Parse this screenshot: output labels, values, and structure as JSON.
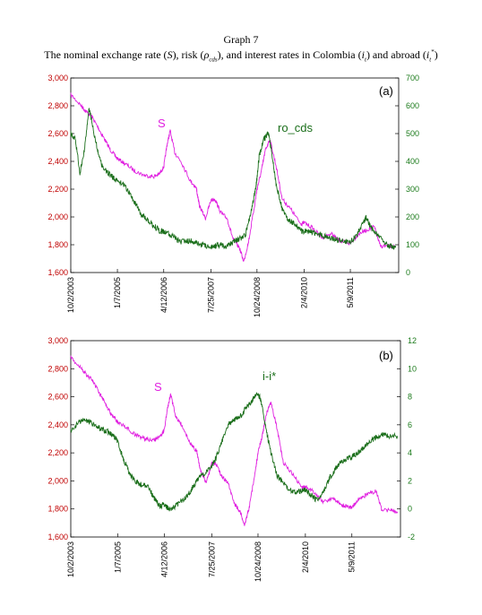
{
  "figure": {
    "title": "Graph 7",
    "subtitle": "The nominal exchange rate (S), risk (ρcds), and interest rates in Colombia (it) and abroad (it*)"
  },
  "colors": {
    "s_series": "#e020e0",
    "right_series": "#1a6e1a",
    "left_axis": "#c00000",
    "right_axis": "#1a7a1a"
  },
  "chart_data": [
    {
      "type": "line",
      "panel_label": "(a)",
      "x_ticks": [
        "10/2/2003",
        "1/7/2005",
        "4/12/2006",
        "7/25/2007",
        "10/24/2008",
        "2/4/2010",
        "5/9/2011"
      ],
      "left_axis": {
        "ylim": [
          1600,
          3000
        ],
        "ticks": [
          "1,600",
          "1,800",
          "2,000",
          "2,200",
          "2,400",
          "2,600",
          "2,800",
          "3,000"
        ]
      },
      "right_axis": {
        "ylim": [
          0,
          700
        ],
        "ticks": [
          "0",
          "100",
          "200",
          "300",
          "400",
          "500",
          "600",
          "700"
        ]
      },
      "series": [
        {
          "name": "S",
          "axis": "left",
          "x": [
            "2003-10-02",
            "2004-01-15",
            "2004-03-01",
            "2004-05-01",
            "2004-07-01",
            "2004-09-01",
            "2004-11-01",
            "2005-01-07",
            "2005-04-01",
            "2005-07-01",
            "2005-10-01",
            "2006-01-01",
            "2006-03-01",
            "2006-04-12",
            "2006-05-15",
            "2006-06-15",
            "2006-08-01",
            "2006-10-01",
            "2007-01-01",
            "2007-03-01",
            "2007-04-01",
            "2007-06-01",
            "2007-07-25",
            "2007-09-01",
            "2007-11-01",
            "2008-01-01",
            "2008-03-01",
            "2008-05-01",
            "2008-06-15",
            "2008-08-01",
            "2008-10-01",
            "2008-10-24",
            "2008-12-01",
            "2009-01-15",
            "2009-03-01",
            "2009-05-01",
            "2009-07-01",
            "2009-10-01",
            "2010-01-01",
            "2010-02-04",
            "2010-05-01",
            "2010-08-01",
            "2010-11-01",
            "2011-01-01",
            "2011-03-01",
            "2011-05-09",
            "2011-08-01",
            "2011-10-01",
            "2012-01-01",
            "2012-03-01",
            "2012-06-01",
            "2012-08-01"
          ],
          "values": [
            2880,
            2800,
            2760,
            2720,
            2640,
            2560,
            2480,
            2420,
            2380,
            2330,
            2300,
            2290,
            2310,
            2360,
            2520,
            2620,
            2460,
            2400,
            2260,
            2210,
            2080,
            1990,
            2120,
            2130,
            2030,
            1990,
            1840,
            1780,
            1680,
            1820,
            2090,
            2200,
            2310,
            2480,
            2560,
            2370,
            2130,
            2050,
            1950,
            1960,
            1920,
            1850,
            1880,
            1840,
            1820,
            1810,
            1880,
            1900,
            1930,
            1790,
            1790,
            1780
          ]
        },
        {
          "name": "ro_cds",
          "axis": "right",
          "x": [
            "2003-10-02",
            "2003-11-15",
            "2004-01-01",
            "2004-02-15",
            "2004-04-01",
            "2004-06-01",
            "2004-08-01",
            "2004-10-01",
            "2004-12-01",
            "2005-01-07",
            "2005-03-01",
            "2005-05-01",
            "2005-07-01",
            "2005-09-01",
            "2005-11-01",
            "2006-01-01",
            "2006-03-01",
            "2006-04-12",
            "2006-06-01",
            "2006-08-01",
            "2006-10-01",
            "2007-01-01",
            "2007-03-01",
            "2007-05-01",
            "2007-07-25",
            "2007-09-01",
            "2007-11-01",
            "2008-01-01",
            "2008-03-01",
            "2008-05-01",
            "2008-07-01",
            "2008-09-01",
            "2008-10-10",
            "2008-10-24",
            "2008-11-15",
            "2009-01-01",
            "2009-02-15",
            "2009-03-15",
            "2009-05-01",
            "2009-07-01",
            "2009-09-01",
            "2009-11-01",
            "2010-01-01",
            "2010-02-04",
            "2010-04-01",
            "2010-06-01",
            "2010-08-01",
            "2010-10-01",
            "2010-12-01",
            "2011-02-01",
            "2011-05-09",
            "2011-07-01",
            "2011-09-01",
            "2011-10-15",
            "2011-12-01",
            "2012-02-01",
            "2012-04-01",
            "2012-06-01",
            "2012-08-01"
          ],
          "values": [
            500,
            480,
            360,
            440,
            590,
            480,
            390,
            360,
            340,
            330,
            320,
            290,
            250,
            210,
            190,
            170,
            150,
            145,
            140,
            125,
            110,
            115,
            105,
            100,
            90,
            95,
            100,
            95,
            110,
            120,
            135,
            230,
            300,
            340,
            420,
            480,
            500,
            440,
            320,
            230,
            190,
            175,
            150,
            148,
            150,
            140,
            135,
            125,
            120,
            115,
            110,
            130,
            170,
            200,
            160,
            140,
            110,
            95,
            90
          ]
        }
      ]
    },
    {
      "type": "line",
      "panel_label": "(b)",
      "x_ticks": [
        "10/2/2003",
        "1/7/2005",
        "4/12/2006",
        "7/25/2007",
        "10/24/2008",
        "2/4/2010",
        "5/9/2011"
      ],
      "left_axis": {
        "ylim": [
          1600,
          3000
        ],
        "ticks": [
          "1,600",
          "1,800",
          "2,000",
          "2,200",
          "2,400",
          "2,600",
          "2,800",
          "3,000"
        ]
      },
      "right_axis": {
        "ylim": [
          -2,
          12
        ],
        "ticks": [
          "-2",
          "0",
          "2",
          "4",
          "6",
          "8",
          "10",
          "12"
        ]
      },
      "series": [
        {
          "name": "S",
          "axis": "left",
          "x": [
            "2003-10-02",
            "2004-01-15",
            "2004-03-01",
            "2004-05-01",
            "2004-07-01",
            "2004-09-01",
            "2004-11-01",
            "2005-01-07",
            "2005-04-01",
            "2005-07-01",
            "2005-10-01",
            "2006-01-01",
            "2006-03-01",
            "2006-04-12",
            "2006-05-15",
            "2006-06-15",
            "2006-08-01",
            "2006-10-01",
            "2007-01-01",
            "2007-03-01",
            "2007-04-01",
            "2007-06-01",
            "2007-07-25",
            "2007-09-01",
            "2007-11-01",
            "2008-01-01",
            "2008-03-01",
            "2008-05-01",
            "2008-06-15",
            "2008-08-01",
            "2008-10-01",
            "2008-10-24",
            "2008-12-01",
            "2009-01-15",
            "2009-03-01",
            "2009-05-01",
            "2009-07-01",
            "2009-10-01",
            "2010-01-01",
            "2010-02-04",
            "2010-05-01",
            "2010-08-01",
            "2010-11-01",
            "2011-01-01",
            "2011-03-01",
            "2011-05-09",
            "2011-08-01",
            "2011-10-01",
            "2012-01-01",
            "2012-03-01",
            "2012-06-01",
            "2012-08-01"
          ],
          "values": [
            2880,
            2800,
            2760,
            2720,
            2640,
            2560,
            2480,
            2420,
            2380,
            2330,
            2300,
            2290,
            2310,
            2360,
            2520,
            2620,
            2460,
            2400,
            2260,
            2210,
            2080,
            1990,
            2120,
            2130,
            2030,
            1990,
            1840,
            1780,
            1680,
            1820,
            2090,
            2200,
            2310,
            2480,
            2560,
            2370,
            2130,
            2050,
            1950,
            1960,
            1920,
            1850,
            1880,
            1840,
            1820,
            1810,
            1880,
            1900,
            1930,
            1790,
            1790,
            1780
          ]
        },
        {
          "name": "i-i*",
          "axis": "right",
          "x": [
            "2003-10-02",
            "2003-12-01",
            "2004-02-01",
            "2004-04-01",
            "2004-06-01",
            "2004-08-01",
            "2004-10-01",
            "2004-12-01",
            "2005-01-07",
            "2005-03-01",
            "2005-05-01",
            "2005-07-01",
            "2005-09-01",
            "2005-11-01",
            "2006-01-01",
            "2006-03-01",
            "2006-04-12",
            "2006-06-01",
            "2006-08-01",
            "2006-10-01",
            "2006-12-01",
            "2007-02-01",
            "2007-04-01",
            "2007-06-01",
            "2007-07-25",
            "2007-09-01",
            "2007-11-01",
            "2008-01-01",
            "2008-03-01",
            "2008-05-01",
            "2008-07-01",
            "2008-08-15",
            "2008-09-15",
            "2008-10-24",
            "2008-12-01",
            "2009-01-15",
            "2009-03-01",
            "2009-05-01",
            "2009-07-01",
            "2009-09-01",
            "2009-11-01",
            "2010-01-01",
            "2010-02-04",
            "2010-04-01",
            "2010-06-01",
            "2010-08-01",
            "2010-10-01",
            "2010-12-01",
            "2011-02-01",
            "2011-05-09",
            "2011-07-01",
            "2011-09-01",
            "2011-11-01",
            "2012-01-01",
            "2012-03-01",
            "2012-05-01",
            "2012-08-01"
          ],
          "values": [
            5.5,
            6.0,
            6.4,
            6.2,
            5.9,
            5.7,
            5.5,
            5.2,
            4.8,
            3.6,
            2.6,
            2.0,
            1.7,
            1.6,
            0.8,
            0.2,
            0.3,
            0.0,
            0.2,
            0.6,
            1.0,
            1.7,
            2.4,
            2.6,
            3.0,
            3.6,
            4.8,
            6.0,
            6.4,
            6.6,
            7.2,
            7.6,
            8.0,
            8.3,
            7.5,
            5.5,
            4.0,
            2.4,
            1.8,
            1.4,
            1.2,
            1.3,
            1.4,
            1.0,
            0.6,
            1.2,
            2.2,
            2.9,
            3.4,
            3.7,
            4.0,
            4.4,
            4.8,
            5.1,
            5.3,
            5.2,
            5.2
          ]
        }
      ]
    }
  ]
}
